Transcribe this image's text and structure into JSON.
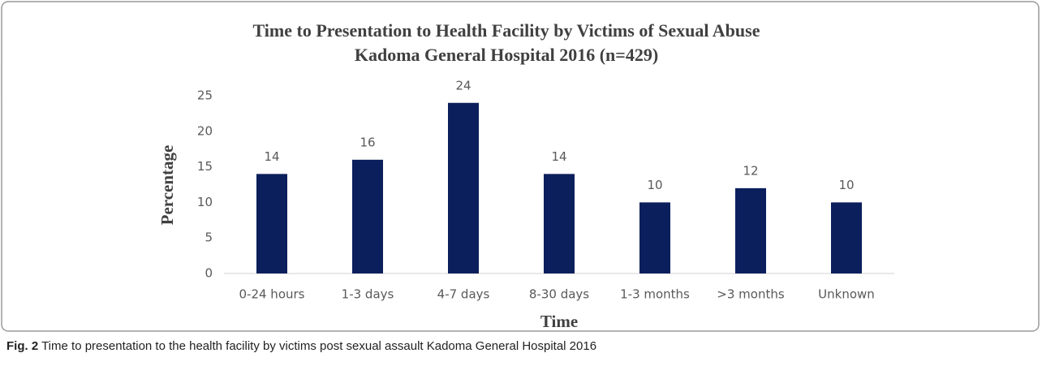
{
  "chart_data": {
    "type": "bar",
    "title": [
      "Time to Presentation to Health Facility by Victims of Sexual Abuse",
      "Kadoma  General Hospital 2016 (n=429)"
    ],
    "x_label": "Time",
    "y_label": "Percentage",
    "categories": [
      "0-24 hours",
      "1-3 days",
      "4-7 days",
      "8-30 days",
      "1-3 months",
      ">3 months",
      "Unknown"
    ],
    "values": [
      14,
      16,
      24,
      14,
      10,
      12,
      10
    ],
    "color": "#0b1f5c",
    "ylim": [
      0,
      25
    ],
    "yticks": [
      0,
      5,
      10,
      15,
      20,
      25
    ],
    "grid": false
  },
  "caption": {
    "label": "Fig. 2",
    "text": "Time to presentation to the health facility by victims post sexual assault Kadoma General Hospital 2016"
  }
}
